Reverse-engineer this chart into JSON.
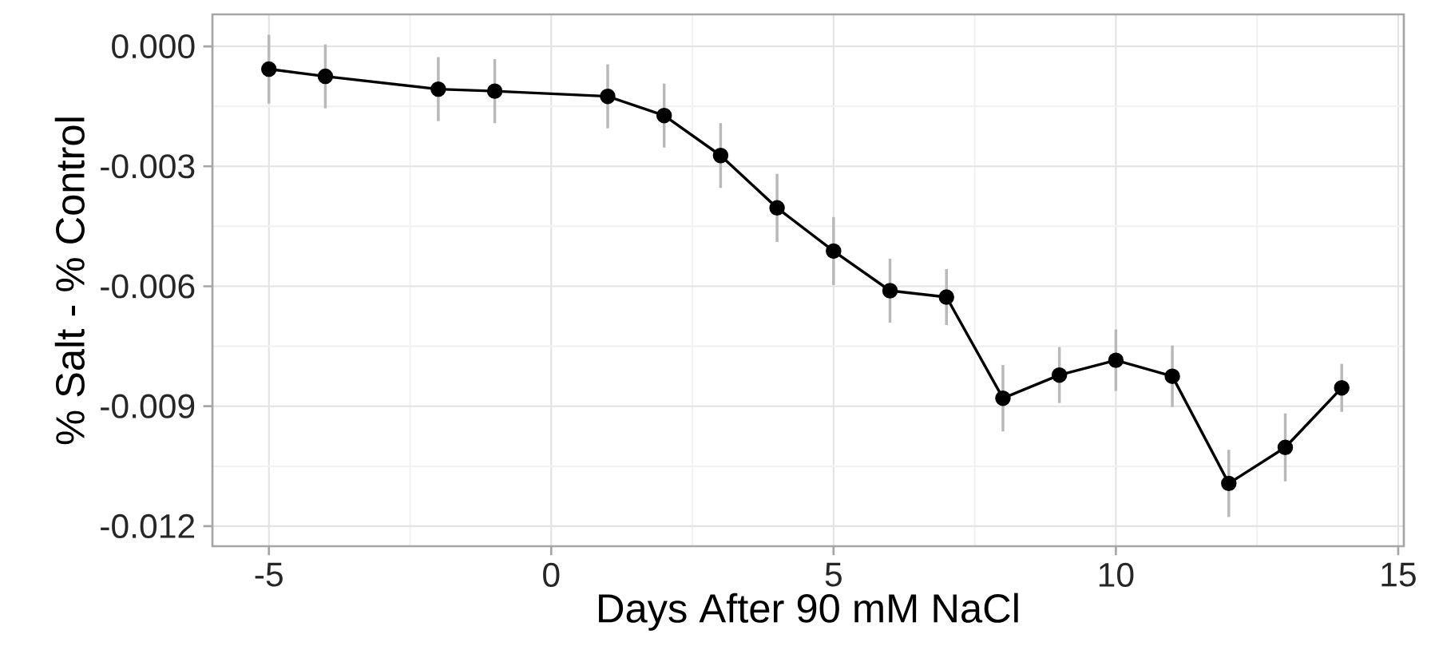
{
  "chart_data": {
    "type": "line",
    "xlabel": "Days After 90 mM NaCl",
    "ylabel": "% Salt - % Control",
    "x": [
      -5,
      -4,
      -2,
      -1,
      1,
      2,
      3,
      4,
      5,
      6,
      7,
      8,
      9,
      10,
      11,
      12,
      13,
      14
    ],
    "series": [
      {
        "color": "#000000",
        "values": [
          -0.00057,
          -0.00075,
          -0.00107,
          -0.00112,
          -0.00125,
          -0.00173,
          -0.00273,
          -0.00404,
          -0.00512,
          -0.00611,
          -0.00627,
          -0.0088,
          -0.00822,
          -0.00785,
          -0.00825,
          -0.01093,
          -0.01003,
          -0.00854
        ],
        "errors": [
          0.00086,
          0.0008,
          0.0008,
          0.0008,
          0.0008,
          0.0008,
          0.00081,
          0.00085,
          0.00085,
          0.0008,
          0.0007,
          0.00083,
          0.0007,
          0.00077,
          0.00077,
          0.00084,
          0.00085,
          0.0006
        ]
      }
    ],
    "xlim": [
      -6,
      15.1
    ],
    "ylim": [
      -0.0125,
      0.0008
    ],
    "xticks": [
      -5,
      0,
      5,
      10,
      15
    ],
    "yticks": [
      {
        "value": 0,
        "label": "0.000"
      },
      {
        "value": -0.003,
        "label": "-0.003"
      },
      {
        "value": -0.006,
        "label": "-0.006"
      },
      {
        "value": -0.009,
        "label": "-0.009"
      },
      {
        "value": -0.012,
        "label": "-0.012"
      }
    ],
    "grid": true,
    "marker": "circle",
    "line_style": "solid"
  }
}
